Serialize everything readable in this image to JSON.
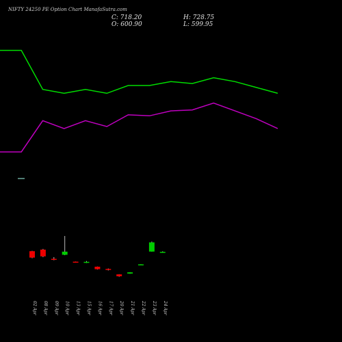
{
  "header": {
    "title": "NIFTY 24250  PE Option  Chart ManafaSutra.com",
    "close": "C: 718.20",
    "high": "H: 728.75",
    "open": "O: 600.90",
    "low": "L: 599.95"
  },
  "chart_data": {
    "type": "candlestick",
    "categories": [
      "02 Apr",
      "08 Apr",
      "09 Apr",
      "10 Apr",
      "13 Apr",
      "15 Apr",
      "16 Apr",
      "17 Apr",
      "20 Apr",
      "21 Apr",
      "22 Apr",
      "23 Apr",
      "24 Apr"
    ],
    "ohlc": [
      {
        "o": 606,
        "h": 610,
        "l": 516,
        "c": 524
      },
      {
        "o": 626,
        "h": 635,
        "l": 530,
        "c": 540
      },
      {
        "o": 508,
        "h": 530,
        "l": 490,
        "c": 497
      },
      {
        "o": 560,
        "h": 800,
        "l": 555,
        "c": 600
      },
      {
        "o": 472,
        "h": 474,
        "l": 460,
        "c": 462
      },
      {
        "o": 468,
        "h": 480,
        "l": 455,
        "c": 470
      },
      {
        "o": 408,
        "h": 410,
        "l": 372,
        "c": 376
      },
      {
        "o": 380,
        "h": 385,
        "l": 360,
        "c": 370
      },
      {
        "o": 310,
        "h": 312,
        "l": 280,
        "c": 286
      },
      {
        "o": 320,
        "h": 338,
        "l": 318,
        "c": 336
      },
      {
        "o": 432,
        "h": 440,
        "l": 430,
        "c": 438
      },
      {
        "o": 600.9,
        "h": 728.75,
        "l": 599.95,
        "c": 718.2
      },
      {
        "o": 596,
        "h": 604,
        "l": 590,
        "c": 597
      }
    ],
    "lines": [
      {
        "name": "",
        "color": "#00dd00",
        "x": [
          0,
          1,
          2,
          3,
          4,
          5,
          6,
          7,
          8,
          9,
          10,
          11,
          12,
          13
        ],
        "values": [
          60,
          60,
          40,
          38,
          40,
          38,
          42,
          42,
          44,
          43,
          46,
          44,
          41,
          38
        ]
      },
      {
        "name": "",
        "color": "#c000c0",
        "x": [
          0,
          1,
          2,
          3,
          4,
          5,
          6,
          7,
          8,
          9,
          10,
          11,
          12,
          13
        ],
        "values": [
          8,
          8,
          24,
          20,
          24,
          21,
          27,
          26.5,
          29,
          29.5,
          33,
          29,
          25,
          20
        ]
      }
    ],
    "up_color": "#00cc00",
    "down_color": "#ee0000",
    "grid": false
  }
}
